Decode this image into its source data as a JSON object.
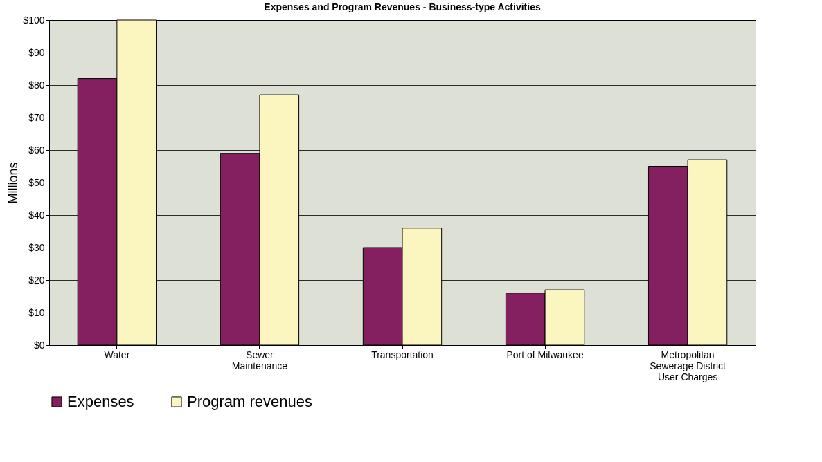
{
  "chart_data": {
    "type": "bar",
    "title": "Expenses and Program Revenues - Business-type Activities",
    "ylabel": "Millions",
    "categories": [
      "Water",
      "Sewer\nMaintenance",
      "Transportation",
      "Port of Milwaukee",
      "Metropolitan\nSewerage District\nUser Charges"
    ],
    "series": [
      {
        "name": "Expenses",
        "color": "#841f60",
        "values": [
          82,
          59,
          30,
          16,
          55
        ]
      },
      {
        "name": "Program revenues",
        "color": "#fbf5c0",
        "values": [
          100,
          77,
          36,
          17,
          57
        ]
      }
    ],
    "ylim": [
      0,
      100
    ],
    "yticks": [
      {
        "value": 0,
        "label": "$0"
      },
      {
        "value": 10,
        "label": "$10"
      },
      {
        "value": 20,
        "label": "$20"
      },
      {
        "value": 30,
        "label": "$30"
      },
      {
        "value": 40,
        "label": "$40"
      },
      {
        "value": 50,
        "label": "$50"
      },
      {
        "value": 60,
        "label": "$60"
      },
      {
        "value": 70,
        "label": "$70"
      },
      {
        "value": 80,
        "label": "$80"
      },
      {
        "value": 90,
        "label": "$90"
      },
      {
        "value": 100,
        "label": "$100"
      }
    ],
    "grid": "y",
    "legend": "bottom"
  }
}
